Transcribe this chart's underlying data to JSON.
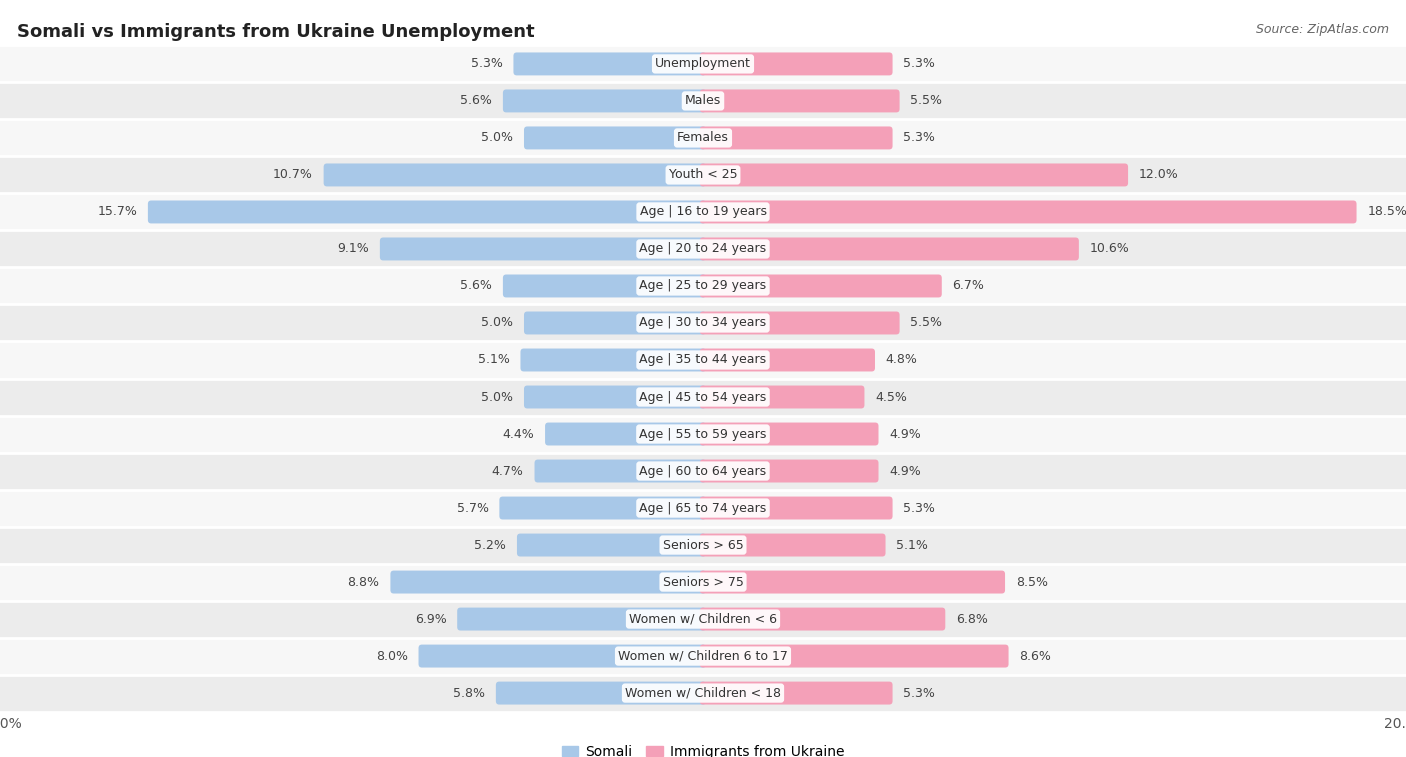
{
  "title": "Somali vs Immigrants from Ukraine Unemployment",
  "source": "Source: ZipAtlas.com",
  "categories": [
    "Unemployment",
    "Males",
    "Females",
    "Youth < 25",
    "Age | 16 to 19 years",
    "Age | 20 to 24 years",
    "Age | 25 to 29 years",
    "Age | 30 to 34 years",
    "Age | 35 to 44 years",
    "Age | 45 to 54 years",
    "Age | 55 to 59 years",
    "Age | 60 to 64 years",
    "Age | 65 to 74 years",
    "Seniors > 65",
    "Seniors > 75",
    "Women w/ Children < 6",
    "Women w/ Children 6 to 17",
    "Women w/ Children < 18"
  ],
  "somali": [
    5.3,
    5.6,
    5.0,
    10.7,
    15.7,
    9.1,
    5.6,
    5.0,
    5.1,
    5.0,
    4.4,
    4.7,
    5.7,
    5.2,
    8.8,
    6.9,
    8.0,
    5.8
  ],
  "ukraine": [
    5.3,
    5.5,
    5.3,
    12.0,
    18.5,
    10.6,
    6.7,
    5.5,
    4.8,
    4.5,
    4.9,
    4.9,
    5.3,
    5.1,
    8.5,
    6.8,
    8.6,
    5.3
  ],
  "somali_color": "#a8c8e8",
  "ukraine_color": "#f4a0b8",
  "row_bg_light": "#f7f7f7",
  "row_bg_dark": "#ececec",
  "axis_limit": 20.0,
  "legend_somali": "Somali",
  "legend_ukraine": "Immigrants from Ukraine"
}
